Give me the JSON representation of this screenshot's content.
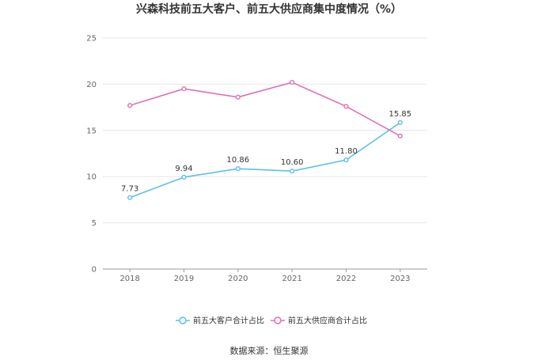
{
  "chart_data": {
    "type": "line",
    "title": "兴森科技前五大客户、前五大供应商集中度情况（%）",
    "categories": [
      "2018",
      "2019",
      "2020",
      "2021",
      "2022",
      "2023"
    ],
    "ylim": [
      0,
      25
    ],
    "yticks": [
      "0",
      "5",
      "10",
      "15",
      "20",
      "25"
    ],
    "grid": true,
    "legend_position": "bottom",
    "series": [
      {
        "name": "前五大客户合计占比",
        "color": "#5bc0eb",
        "values": [
          7.73,
          9.94,
          10.86,
          10.6,
          11.8,
          15.85
        ],
        "labels": [
          "7.73",
          "9.94",
          "10.86",
          "10.60",
          "11.80",
          "15.85"
        ]
      },
      {
        "name": "前五大供应商合计占比",
        "color": "#e06fb6",
        "values": [
          17.7,
          19.5,
          18.6,
          20.2,
          17.6,
          14.4
        ],
        "labels": []
      }
    ]
  },
  "source": "数据来源：恒生聚源"
}
